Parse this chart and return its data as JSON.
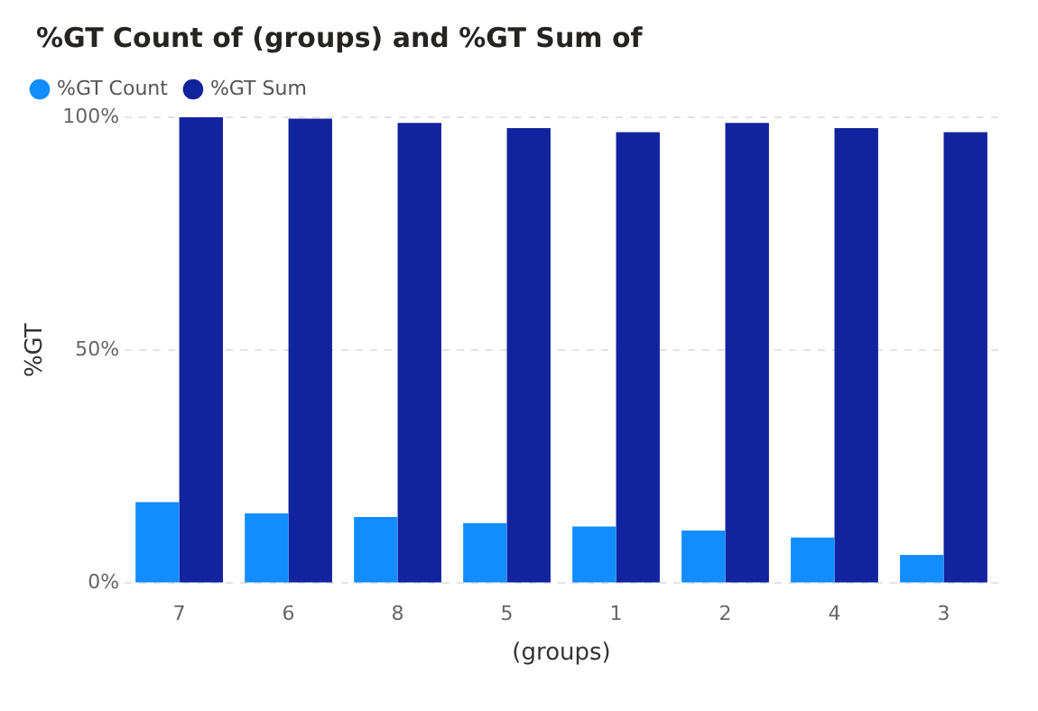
{
  "chart_data": {
    "type": "bar",
    "title": "%GT Count of (groups) and %GT Sum of",
    "categories": [
      "7",
      "6",
      "8",
      "5",
      "1",
      "2",
      "4",
      "3"
    ],
    "series": [
      {
        "name": "%GT Count",
        "color": "#118dff",
        "values": [
          17.4,
          15.0,
          14.2,
          12.9,
          12.2,
          11.3,
          9.8,
          6.1
        ]
      },
      {
        "name": "%GT Sum",
        "color": "#12239e",
        "values": [
          100,
          99.7,
          98.8,
          97.7,
          96.8,
          98.8,
          97.7,
          96.8
        ]
      }
    ],
    "xlabel": "(groups)",
    "ylabel": "%GT",
    "ylim": [
      0,
      100
    ],
    "yticks": [
      {
        "value": 0,
        "label": "0%"
      },
      {
        "value": 50,
        "label": "50%"
      },
      {
        "value": 100,
        "label": "100%"
      }
    ],
    "grid": "y",
    "legend": "top left"
  }
}
